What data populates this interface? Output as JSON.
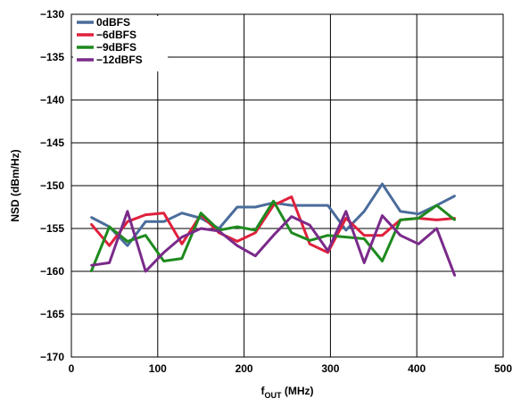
{
  "chart_data": {
    "type": "line",
    "xlabel_main": "f",
    "xlabel_sub": "OUT",
    "xlabel_unit": " (MHz)",
    "ylabel": "NSD (dBm/Hz)",
    "xlim": [
      0,
      500
    ],
    "ylim": [
      -170,
      -130
    ],
    "xticks": [
      0,
      100,
      200,
      300,
      400,
      500
    ],
    "yticks": [
      -130,
      -135,
      -140,
      -145,
      -150,
      -155,
      -160,
      -165,
      -170
    ],
    "xtick_labels": [
      "0",
      "100",
      "200",
      "300",
      "400",
      "500"
    ],
    "ytick_labels": [
      "−130",
      "−135",
      "−140",
      "−145",
      "−150",
      "−155",
      "−160",
      "−165",
      "−170"
    ],
    "grid": true,
    "legend_position": "top-left",
    "series": [
      {
        "name": "0dBFS",
        "color": "#4a6c9b",
        "x": [
          23,
          44,
          65,
          86,
          107,
          128,
          150,
          171,
          192,
          213,
          234,
          255,
          276,
          297,
          318,
          339,
          360,
          381,
          402,
          423,
          444
        ],
        "y": [
          -153.7,
          -154.8,
          -157.0,
          -154.2,
          -154.2,
          -153.2,
          -153.8,
          -155.0,
          -152.5,
          -152.5,
          -152.0,
          -152.3,
          -152.3,
          -152.3,
          -155.2,
          -153.0,
          -149.8,
          -153.0,
          -153.3,
          -152.3,
          -151.2
        ]
      },
      {
        "name": "−6dBFS",
        "color": "#e0203c",
        "x": [
          23,
          44,
          65,
          86,
          107,
          128,
          150,
          171,
          192,
          213,
          234,
          255,
          276,
          297,
          318,
          339,
          360,
          381,
          402,
          423,
          444
        ],
        "y": [
          -154.5,
          -157.0,
          -154.2,
          -153.4,
          -153.2,
          -156.8,
          -153.4,
          -155.5,
          -156.5,
          -155.5,
          -152.3,
          -151.3,
          -156.8,
          -157.8,
          -153.8,
          -155.8,
          -155.8,
          -154.0,
          -153.8,
          -154.0,
          -153.8
        ]
      },
      {
        "name": "−9dBFS",
        "color": "#1e8a1e",
        "x": [
          23,
          44,
          65,
          86,
          107,
          128,
          150,
          171,
          192,
          213,
          234,
          255,
          276,
          297,
          318,
          339,
          360,
          381,
          402,
          423,
          444
        ],
        "y": [
          -160.0,
          -154.8,
          -156.5,
          -155.8,
          -158.8,
          -158.5,
          -153.2,
          -155.2,
          -154.8,
          -155.2,
          -151.8,
          -155.5,
          -156.4,
          -155.8,
          -156.0,
          -156.2,
          -158.8,
          -154.0,
          -153.8,
          -152.3,
          -154.0
        ]
      },
      {
        "name": "−12dBFS",
        "color": "#7a2a8a",
        "x": [
          23,
          44,
          65,
          86,
          107,
          128,
          150,
          171,
          192,
          213,
          234,
          255,
          276,
          297,
          318,
          339,
          360,
          381,
          402,
          423,
          444
        ],
        "y": [
          -159.3,
          -159.0,
          -153.0,
          -160.0,
          -157.8,
          -156.0,
          -155.0,
          -155.3,
          -157.0,
          -158.2,
          -155.8,
          -153.6,
          -154.6,
          -157.6,
          -153.0,
          -159.0,
          -153.5,
          -155.8,
          -156.8,
          -155.0,
          -160.5
        ]
      }
    ]
  }
}
